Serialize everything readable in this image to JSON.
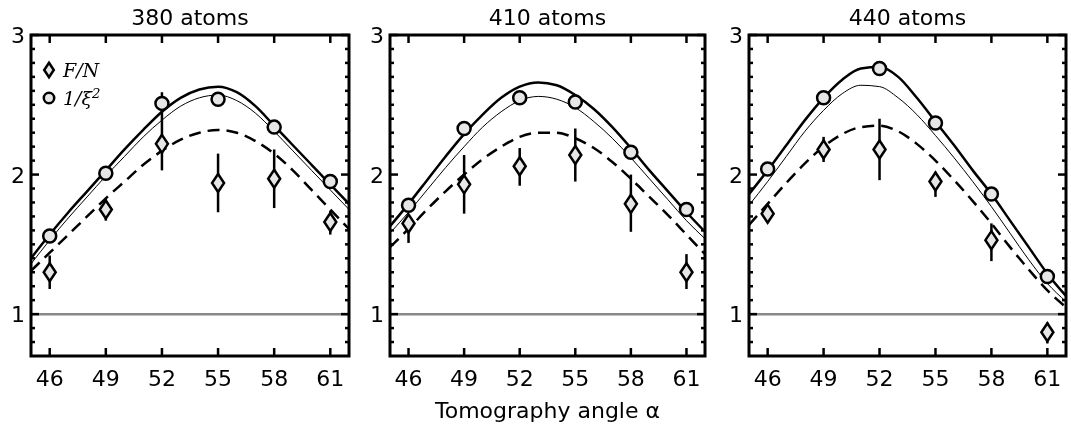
{
  "chart_data": [
    {
      "type": "line",
      "title": "380 atoms",
      "xlim": [
        45,
        62
      ],
      "ylim": [
        0.7,
        3
      ],
      "xticks": [
        46,
        49,
        52,
        55,
        58,
        61
      ],
      "yticks": [
        {
          "value": 0.8,
          "label": null
        },
        {
          "value": 0.9,
          "label": null
        },
        1,
        {
          "value": 1.1,
          "label": null
        },
        {
          "value": 1.2,
          "label": null
        },
        {
          "value": 1.3,
          "label": null
        },
        {
          "value": 1.4,
          "label": null
        },
        {
          "value": 1.5,
          "label": null
        },
        {
          "value": 1.6,
          "label": null
        },
        {
          "value": 1.7,
          "label": null
        },
        {
          "value": 1.8,
          "label": null
        },
        {
          "value": 1.9,
          "label": null
        },
        2,
        {
          "value": 2.1,
          "label": null
        },
        {
          "value": 2.2,
          "label": null
        },
        {
          "value": 2.3,
          "label": null
        },
        {
          "value": 2.4,
          "label": null
        },
        {
          "value": 2.5,
          "label": null
        },
        {
          "value": 2.6,
          "label": null
        },
        {
          "value": 2.7,
          "label": null
        },
        {
          "value": 2.8,
          "label": null
        },
        {
          "value": 2.9,
          "label": null
        },
        3
      ],
      "legend": "top left",
      "grid": false,
      "ref_lines": [
        {
          "axis": "y",
          "value": 1,
          "color": "#888888"
        }
      ],
      "series": [
        {
          "name": "F/N",
          "type": "scatter",
          "marker": "diamond",
          "color": "#e6e6e6",
          "x": [
            46,
            49,
            52,
            55,
            58,
            61
          ],
          "values": [
            1.3,
            1.75,
            2.22,
            1.94,
            1.97,
            1.66
          ],
          "errors": [
            0.12,
            0.08,
            [
              2.03,
              2.59
            ],
            [
              1.73,
              2.15
            ],
            [
              1.76,
              2.18
            ],
            [
              1.57,
              1.74
            ]
          ]
        },
        {
          "name": "1/ξ$^{2}$",
          "type": "scatter",
          "marker": "circle",
          "color": "#e6e6e6",
          "x": [
            46,
            49,
            52,
            55,
            58,
            61
          ],
          "values": [
            1.56,
            2.01,
            2.51,
            2.54,
            2.34,
            1.95
          ]
        },
        {
          "color": "#000000",
          "line_style": "solid",
          "x": [
            45,
            46,
            47,
            48,
            49,
            50,
            51,
            52,
            53,
            54,
            55,
            56,
            57,
            58,
            59,
            60,
            61,
            62
          ],
          "values": [
            1.4,
            1.57,
            1.73,
            1.88,
            2.03,
            2.18,
            2.32,
            2.45,
            2.55,
            2.61,
            2.63,
            2.59,
            2.49,
            2.35,
            2.21,
            2.07,
            1.93,
            1.79
          ]
        },
        {
          "color": "#000000",
          "line_style": "solid",
          "x": [
            45,
            46,
            47,
            48,
            49,
            50,
            51,
            52,
            53,
            54,
            55,
            56,
            57,
            58,
            59,
            60,
            61,
            62
          ],
          "values": [
            1.36,
            1.53,
            1.69,
            1.84,
            1.99,
            2.13,
            2.27,
            2.39,
            2.49,
            2.55,
            2.57,
            2.53,
            2.44,
            2.31,
            2.17,
            2.03,
            1.89,
            1.75
          ]
        },
        {
          "color": "#000000",
          "line_style": "dashed",
          "x": [
            45,
            46,
            47,
            48,
            49,
            50,
            51,
            52,
            53,
            54,
            55,
            56,
            57,
            58,
            59,
            60,
            61,
            62
          ],
          "values": [
            1.31,
            1.44,
            1.57,
            1.7,
            1.83,
            1.95,
            2.07,
            2.17,
            2.25,
            2.3,
            2.32,
            2.3,
            2.24,
            2.15,
            2.03,
            1.89,
            1.75,
            1.61
          ]
        }
      ]
    },
    {
      "type": "line",
      "title": "410 atoms",
      "xlabel": "Tomography angle α",
      "xlim": [
        45,
        62
      ],
      "ylim": [
        0.7,
        3
      ],
      "xticks": [
        46,
        49,
        52,
        55,
        58,
        61
      ],
      "yticks": [
        {
          "value": 0.8,
          "label": null
        },
        {
          "value": 0.9,
          "label": null
        },
        1,
        {
          "value": 1.1,
          "label": null
        },
        {
          "value": 1.2,
          "label": null
        },
        {
          "value": 1.3,
          "label": null
        },
        {
          "value": 1.4,
          "label": null
        },
        {
          "value": 1.5,
          "label": null
        },
        {
          "value": 1.6,
          "label": null
        },
        {
          "value": 1.7,
          "label": null
        },
        {
          "value": 1.8,
          "label": null
        },
        {
          "value": 1.9,
          "label": null
        },
        2,
        {
          "value": 2.1,
          "label": null
        },
        {
          "value": 2.2,
          "label": null
        },
        {
          "value": 2.3,
          "label": null
        },
        {
          "value": 2.4,
          "label": null
        },
        {
          "value": 2.5,
          "label": null
        },
        {
          "value": 2.6,
          "label": null
        },
        {
          "value": 2.7,
          "label": null
        },
        {
          "value": 2.8,
          "label": null
        },
        {
          "value": 2.9,
          "label": null
        },
        3
      ],
      "grid": false,
      "ref_lines": [
        {
          "axis": "y",
          "value": 1,
          "color": "#888888"
        }
      ],
      "series": [
        {
          "type": "scatter",
          "marker": "diamond",
          "color": "#e6e6e6",
          "x": [
            46,
            49,
            52,
            55,
            58,
            61
          ],
          "values": [
            1.65,
            1.93,
            2.06,
            2.14,
            1.79,
            1.3
          ],
          "errors": [
            [
              1.51,
              1.65
            ],
            [
              1.72,
              2.14
            ],
            [
              1.92,
              2.19
            ],
            [
              1.95,
              2.33
            ],
            [
              1.59,
              2.0
            ],
            [
              1.18,
              1.43
            ]
          ]
        },
        {
          "type": "scatter",
          "marker": "circle",
          "color": "#e6e6e6",
          "x": [
            46,
            49,
            52,
            55,
            58,
            61
          ],
          "values": [
            1.78,
            2.33,
            2.55,
            2.52,
            2.16,
            1.75
          ]
        },
        {
          "color": "#000000",
          "line_style": "solid",
          "x": [
            45,
            46,
            47,
            48,
            49,
            50,
            51,
            52,
            53,
            54,
            55,
            56,
            57,
            58,
            59,
            60,
            61,
            62
          ],
          "values": [
            1.63,
            1.79,
            1.96,
            2.13,
            2.29,
            2.43,
            2.55,
            2.63,
            2.66,
            2.64,
            2.57,
            2.47,
            2.34,
            2.19,
            2.03,
            1.88,
            1.73,
            1.59
          ]
        },
        {
          "color": "#000000",
          "line_style": "solid",
          "x": [
            45,
            46,
            47,
            48,
            49,
            50,
            51,
            52,
            53,
            54,
            55,
            56,
            57,
            58,
            59,
            60,
            61,
            62
          ],
          "values": [
            1.58,
            1.73,
            1.89,
            2.05,
            2.2,
            2.34,
            2.45,
            2.53,
            2.56,
            2.54,
            2.48,
            2.38,
            2.26,
            2.12,
            1.97,
            1.82,
            1.67,
            1.54
          ]
        },
        {
          "color": "#000000",
          "line_style": "dashed",
          "x": [
            45,
            46,
            47,
            48,
            49,
            50,
            51,
            52,
            53,
            54,
            55,
            56,
            57,
            58,
            59,
            60,
            61,
            62
          ],
          "values": [
            1.48,
            1.61,
            1.75,
            1.88,
            2.0,
            2.11,
            2.2,
            2.27,
            2.3,
            2.3,
            2.26,
            2.19,
            2.09,
            1.97,
            1.84,
            1.71,
            1.57,
            1.43
          ]
        }
      ]
    },
    {
      "type": "line",
      "title": "440 atoms",
      "xlim": [
        45,
        62
      ],
      "ylim": [
        0.7,
        3
      ],
      "xticks": [
        46,
        49,
        52,
        55,
        58,
        61
      ],
      "yticks": [
        {
          "value": 0.8,
          "label": null
        },
        {
          "value": 0.9,
          "label": null
        },
        1,
        {
          "value": 1.1,
          "label": null
        },
        {
          "value": 1.2,
          "label": null
        },
        {
          "value": 1.3,
          "label": null
        },
        {
          "value": 1.4,
          "label": null
        },
        {
          "value": 1.5,
          "label": null
        },
        {
          "value": 1.6,
          "label": null
        },
        {
          "value": 1.7,
          "label": null
        },
        {
          "value": 1.8,
          "label": null
        },
        {
          "value": 1.9,
          "label": null
        },
        2,
        {
          "value": 2.1,
          "label": null
        },
        {
          "value": 2.2,
          "label": null
        },
        {
          "value": 2.3,
          "label": null
        },
        {
          "value": 2.4,
          "label": null
        },
        {
          "value": 2.5,
          "label": null
        },
        {
          "value": 2.6,
          "label": null
        },
        {
          "value": 2.7,
          "label": null
        },
        {
          "value": 2.8,
          "label": null
        },
        {
          "value": 2.9,
          "label": null
        },
        3
      ],
      "grid": false,
      "ref_lines": [
        {
          "axis": "y",
          "value": 1,
          "color": "#888888"
        }
      ],
      "series": [
        {
          "type": "scatter",
          "marker": "diamond",
          "color": "#e6e6e6",
          "x": [
            46,
            49,
            52,
            55,
            58,
            61
          ],
          "values": [
            1.72,
            2.18,
            2.18,
            1.95,
            1.53,
            0.87
          ],
          "errors": [
            null,
            0.09,
            [
              1.96,
              2.4
            ],
            [
              1.84,
              2.02
            ],
            [
              1.38,
              1.65
            ],
            [
              0.79,
              0.94
            ]
          ]
        },
        {
          "type": "scatter",
          "marker": "circle",
          "color": "#e6e6e6",
          "x": [
            46,
            49,
            52,
            55,
            58,
            61
          ],
          "values": [
            2.04,
            2.55,
            2.76,
            2.37,
            1.86,
            1.27
          ]
        },
        {
          "color": "#000000",
          "line_style": "solid",
          "x": [
            45,
            46,
            47,
            48,
            49,
            50,
            51,
            52,
            53,
            54,
            55,
            56,
            57,
            58,
            59,
            60,
            61,
            62
          ],
          "values": [
            1.86,
            2.03,
            2.21,
            2.39,
            2.55,
            2.68,
            2.76,
            2.77,
            2.7,
            2.55,
            2.38,
            2.21,
            2.03,
            1.86,
            1.67,
            1.48,
            1.29,
            1.13
          ]
        },
        {
          "color": "#000000",
          "line_style": "solid",
          "x": [
            45,
            46,
            47,
            48,
            49,
            50,
            51,
            52,
            53,
            54,
            55,
            56,
            57,
            58,
            59,
            60,
            61,
            62
          ],
          "values": [
            1.78,
            1.95,
            2.13,
            2.31,
            2.46,
            2.58,
            2.64,
            2.63,
            2.55,
            2.43,
            2.28,
            2.12,
            1.95,
            1.77,
            1.58,
            1.39,
            1.22,
            1.09
          ]
        },
        {
          "color": "#000000",
          "line_style": "dashed",
          "x": [
            45,
            46,
            47,
            48,
            49,
            50,
            51,
            52,
            53,
            54,
            55,
            56,
            57,
            58,
            59,
            60,
            61,
            62
          ],
          "values": [
            1.64,
            1.79,
            1.94,
            2.08,
            2.2,
            2.29,
            2.34,
            2.35,
            2.31,
            2.22,
            2.1,
            1.96,
            1.81,
            1.65,
            1.48,
            1.32,
            1.17,
            1.05
          ]
        }
      ]
    }
  ]
}
